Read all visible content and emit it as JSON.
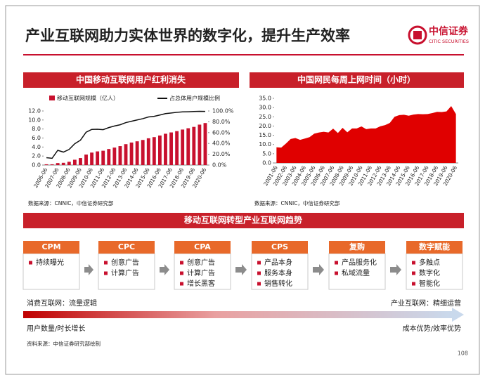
{
  "header": {
    "title": "产业互联网助力实体世界的数字化，提升生产效率",
    "logo_cn": "中信证券",
    "logo_en": "CITIC SECURITIES"
  },
  "chart_data": [
    {
      "type": "bar",
      "title": "中国移动互联网用户红利消失",
      "categories": [
        "2006-06",
        null,
        "2007-06",
        null,
        "2008-06",
        null,
        "2009-06",
        null,
        "2010-06",
        null,
        "2011-06",
        null,
        "2012-06",
        null,
        "2013-06",
        null,
        "2014-06",
        null,
        "2015-06",
        null,
        "2016-06",
        null,
        "2017-06",
        null,
        "2018-06",
        null,
        "2019-06",
        null,
        "2020-06"
      ],
      "series": [
        {
          "name": "移动互联网规模（亿人）",
          "color": "#c8102e",
          "values": [
            0.17,
            0.17,
            0.44,
            0.5,
            0.73,
            1.18,
            1.55,
            2.33,
            2.77,
            3.03,
            3.18,
            3.56,
            3.88,
            4.2,
            4.64,
            5.0,
            5.27,
            5.57,
            5.94,
            6.2,
            6.56,
            6.95,
            7.24,
            7.53,
            7.88,
            8.17,
            8.47,
            8.97,
            9.32
          ]
        },
        {
          "name": "占总体用户规模比例",
          "color": "#111111",
          "type": "line",
          "axis": "y2",
          "values": [
            13.6,
            12.5,
            27.3,
            24.0,
            28.9,
            39.5,
            46.0,
            60.8,
            65.9,
            66.2,
            65.5,
            69.3,
            72.2,
            74.5,
            78.5,
            81.0,
            83.4,
            85.8,
            88.9,
            90.1,
            92.5,
            95.1,
            96.3,
            97.5,
            98.3,
            98.6,
            99.1,
            99.3,
            99.2
          ]
        }
      ],
      "ylim": [
        0,
        12
      ],
      "yticks": [
        {
          "value": 0,
          "label": "0.0"
        },
        {
          "value": 2,
          "label": "2.0"
        },
        {
          "value": 4,
          "label": "4.0"
        },
        {
          "value": 6,
          "label": "6.0"
        },
        {
          "value": 8,
          "label": "8.0"
        },
        {
          "value": 10,
          "label": "10.0"
        },
        {
          "value": 12,
          "label": "12.0"
        }
      ],
      "y2lim": [
        0,
        100
      ],
      "y2ticks": [
        {
          "value": 0,
          "label": "0.0%"
        },
        {
          "value": 20,
          "label": "20.0%"
        },
        {
          "value": 40,
          "label": "40.0%"
        },
        {
          "value": 60,
          "label": "60.0%"
        },
        {
          "value": 80,
          "label": "80.0%"
        },
        {
          "value": 100,
          "label": "100.0%"
        }
      ],
      "source": "数据来源：CNNIC，中信证券研究部"
    },
    {
      "type": "area",
      "title": "中国网民每周上网时间（小时）",
      "categories": [
        "2001-06",
        null,
        "2002-06",
        null,
        "2003-06",
        null,
        "2004-06",
        null,
        "2005-06",
        null,
        "2006-06",
        null,
        "2007-06",
        null,
        "2008-06",
        null,
        "2009-06",
        null,
        "2010-06",
        null,
        "2011-06",
        null,
        "2012-06",
        null,
        "2013-06",
        null,
        "2014-06",
        null,
        "2015-06",
        null,
        "2016-06",
        null,
        "2017-06",
        null,
        "2018-06",
        null,
        "2019-06",
        null,
        "2020-06"
      ],
      "values": [
        8.5,
        8.3,
        10.5,
        13.0,
        13.5,
        12.5,
        13.2,
        14.0,
        15.9,
        16.5,
        16.9,
        16.5,
        18.6,
        16.2,
        19.0,
        16.6,
        18.7,
        18.7,
        19.8,
        18.3,
        18.7,
        18.7,
        19.9,
        20.5,
        21.7,
        25.0,
        25.9,
        26.1,
        25.6,
        26.2,
        26.5,
        26.4,
        26.5,
        27.0,
        27.7,
        27.6,
        27.9,
        30.8,
        26.5
      ],
      "color": "#e00000",
      "ylim": [
        0,
        35
      ],
      "yticks": [
        {
          "value": 0,
          "label": "0.0"
        },
        {
          "value": 5,
          "label": "5.0"
        },
        {
          "value": 10,
          "label": "10.0"
        },
        {
          "value": 15,
          "label": "15.0"
        },
        {
          "value": 20,
          "label": "20.0"
        },
        {
          "value": 25,
          "label": "25.0"
        },
        {
          "value": 30,
          "label": "30.0"
        },
        {
          "value": 35,
          "label": "35.0"
        }
      ],
      "source": "数据来源：CNNIC，中信证券研究部"
    }
  ],
  "flow": {
    "title": "移动互联网转型产业互联网趋势",
    "steps": [
      {
        "label": "CPM",
        "items": [
          "持续曝光"
        ]
      },
      {
        "label": "CPC",
        "items": [
          "创意广告",
          "计算广告"
        ]
      },
      {
        "label": "CPA",
        "items": [
          "创意广告",
          "计算广告",
          "增长黑客"
        ]
      },
      {
        "label": "CPS",
        "items": [
          "产品本身",
          "服务本身",
          "销售转化"
        ]
      },
      {
        "label": "复购",
        "items": [
          "产品服务化",
          "私域流量"
        ]
      },
      {
        "label": "数字赋能",
        "items": [
          "多触点",
          "数字化",
          "智能化"
        ]
      }
    ]
  },
  "trend": {
    "left_top": "消费互联网：流量逻辑",
    "right_top": "产业互联网：精细运营",
    "left_bottom": "用户数量/时长增长",
    "right_bottom": "成本优势/效率优势"
  },
  "source": "资料来源：中信证券研究部绘制",
  "page": 108
}
